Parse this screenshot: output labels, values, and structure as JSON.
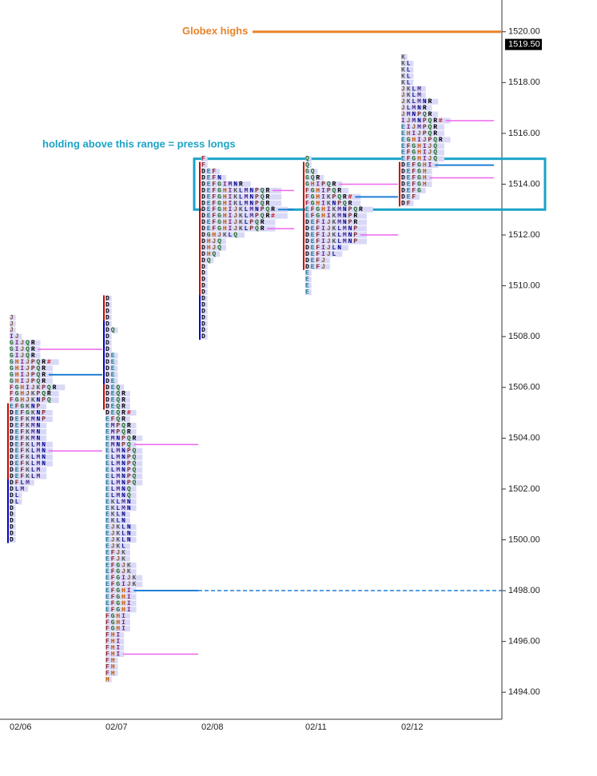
{
  "chart_data": {
    "type": "market_profile",
    "ylim": [
      1493,
      1521.25
    ],
    "yticks": [
      {
        "value": 1494,
        "label": "1494.00"
      },
      {
        "value": 1496,
        "label": "1496.00"
      },
      {
        "value": 1498,
        "label": "1498.00"
      },
      {
        "value": 1500,
        "label": "1500.00"
      },
      {
        "value": 1502,
        "label": "1502.00"
      },
      {
        "value": 1504,
        "label": "1504.00"
      },
      {
        "value": 1506,
        "label": "1506.00"
      },
      {
        "value": 1508,
        "label": "1508.00"
      },
      {
        "value": 1510,
        "label": "1510.00"
      },
      {
        "value": 1512,
        "label": "1512.00"
      },
      {
        "value": 1514,
        "label": "1514.00"
      },
      {
        "value": 1516,
        "label": "1516.00"
      },
      {
        "value": 1518,
        "label": "1518.00"
      },
      {
        "value": 1520,
        "label": "1520.00"
      }
    ],
    "tick_size": 0.25,
    "days": [
      {
        "date": "02/06",
        "top": 1508.75,
        "poc": 1506.5,
        "value_area": [
          1507.5,
          1503.5
        ],
        "range_bars": [
          {
            "color": "#cc0000",
            "from": 1505.25,
            "to": 1502.5
          },
          {
            "color": "#0000cc",
            "from": 1502.25,
            "to": 1500
          }
        ],
        "rows": [
          "J",
          "J",
          "J",
          "IJ",
          "GIJQR",
          "GIJQR",
          "GIJQR",
          "GHIJPQR#",
          "GHIJPQR",
          "GHIJPQR",
          "GHIJPQR",
          "FGHIJKPQR",
          "FGHJKPQR",
          "FGHJKNPQ",
          "EFGKNP",
          "DEFGKNP",
          "DEFKMNP",
          "DEFKMN",
          "DEFKMN",
          "DEFKMN",
          "DEFKLMN",
          "DEFKLMN",
          "DEFKLMN",
          "DEFKLMN",
          "DEFKLM",
          "DEFKLM",
          "DFLM",
          "DLM",
          "DL",
          "DL",
          "D",
          "D",
          "D",
          "D",
          "D",
          "D"
        ]
      },
      {
        "date": "02/07",
        "top": 1509.5,
        "poc": 1498,
        "poc_extended": true,
        "value_area": [
          1503.75,
          1495.5
        ],
        "range_bars": [
          {
            "color": "#cc0000",
            "from": 1509.5,
            "to": 1505.25
          },
          {
            "color": "#0000cc",
            "from": 1508.5,
            "to": 1506.25
          }
        ],
        "rows": [
          "D",
          "D",
          "D",
          "D",
          "D",
          "DQ",
          "D",
          "D",
          "D",
          "DE",
          "DE",
          "DE",
          "DE",
          "DE",
          "DEQ",
          "DEQR",
          "DEQR",
          "DEQR",
          "DEQR#",
          "EFQR",
          "EMPQR",
          "EMPQR",
          "EMNPQR",
          "EMNPQ",
          "ELMNPQ",
          "ELMNPQ",
          "ELMNPQ",
          "ELMNPQ",
          "ELMNPQ",
          "ELMNPQ",
          "ELMNQ",
          "ELMNQ",
          "EKLMN",
          "EKLMN",
          "EKLN",
          "EKLN",
          "EJKLN",
          "EJKLN",
          "EJKLN",
          "EJKL",
          "EFJK",
          "EFJK",
          "EFGJK",
          "EFGJK",
          "EFGIJK",
          "EFGIJK",
          "EFGHI",
          "EFGHI",
          "EFGHI",
          "EFGHI",
          "FGHI",
          "FGHI",
          "FGHI",
          "FHI",
          "FHI",
          "FHI",
          "FHI",
          "FH",
          "FH",
          "FH",
          "H"
        ]
      },
      {
        "date": "02/08",
        "top": 1515,
        "poc": 1513,
        "value_area": [
          1513.75,
          1512.25
        ],
        "range_bars": [
          {
            "color": "#cc0000",
            "from": 1514.75,
            "to": 1509.75
          },
          {
            "color": "#0000cc",
            "from": 1509.5,
            "to": 1508
          }
        ],
        "rows": [
          "F",
          "F",
          "DEF",
          "DEFN",
          "DEFGIMNR",
          "DEFGHIKLMNPQR",
          "DEFGHIKLMNPQR",
          "DEFGHIKLMNPQR",
          "DEFGHIJKLMNPQR",
          "DEFGHIJKLMPQR#",
          "DEFGHIJKLPQR",
          "DEFGHIJKLPQR",
          "DGHJKLQ",
          "DHJQ",
          "DHJQ",
          "DHQ",
          "DQ",
          "D",
          "D",
          "D",
          "D",
          "D",
          "D",
          "D",
          "D",
          "D",
          "D",
          "D",
          "D"
        ]
      },
      {
        "date": "02/11",
        "top": 1515,
        "poc": 1513.5,
        "value_area": [
          1514,
          1512
        ],
        "range_bars": [
          {
            "color": "#cc0000",
            "from": 1514.75,
            "to": 1510.75
          }
        ],
        "rows": [
          "Q",
          "Q",
          "GQ",
          "GQR",
          "GHIPQR",
          "FGHIPQR",
          "FGHIKPQR#",
          "FGHIKNPQR",
          "EFGHIKMNPQR",
          "EFGHIKMNPR",
          "DEFIJKMNPR",
          "DEFIJKLMNP",
          "DEFIJKLMNP",
          "DEFIJKLMNP",
          "DEFIJLN",
          "DEFIJL",
          "DEFJ",
          "DEFJ",
          "E",
          "E",
          "E",
          "E"
        ]
      },
      {
        "date": "02/12",
        "top": 1519,
        "poc": 1514.75,
        "value_area": [
          1516.5,
          1514.25
        ],
        "range_bars": [
          {
            "color": "#cc0000",
            "from": 1514.75,
            "to": 1513.25
          }
        ],
        "rows": [
          "K",
          "KL",
          "KL",
          "KL",
          "KL",
          "JKLM",
          "JKLM",
          "JKLMNR",
          "JLMNR",
          "JMNPQR",
          "IJMNPQR#",
          "EIJMPQR",
          "EHIJPQR",
          "EGHIJPQR",
          "EFGHIJQ",
          "EFGHIJQ",
          "EFGHIJQ",
          "DEFGHI",
          "DEFGH",
          "DEFGH",
          "DEFGH",
          "DEFG",
          "DEF",
          "DF"
        ]
      }
    ],
    "globex_high": {
      "label": "Globex highs",
      "value": 1520,
      "color": "#e8832a"
    },
    "last_price": {
      "value": 1519.5,
      "label": "1519.50"
    },
    "note": {
      "text": "holding above this range = press longs",
      "color": "#1ba3c6",
      "box": [
        1515,
        1513
      ]
    }
  }
}
